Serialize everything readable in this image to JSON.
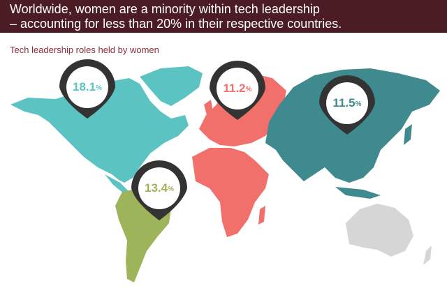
{
  "header": {
    "lines": [
      "Worldwide, women are a minority within tech leadership",
      "– accounting for less than 20% in their respective countries."
    ]
  },
  "subtitle": "Tech leadership roles held by women",
  "pins": [
    {
      "region": "North America",
      "value": 18.1,
      "unit": "%"
    },
    {
      "region": "Europe",
      "value": 11.2,
      "unit": "%"
    },
    {
      "region": "Asia",
      "value": 11.5,
      "unit": "%"
    },
    {
      "region": "South America",
      "value": 13.4,
      "unit": "%"
    }
  ]
}
